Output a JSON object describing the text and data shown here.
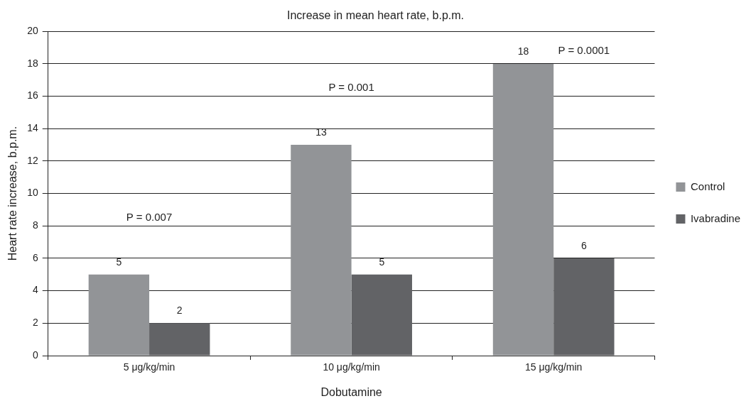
{
  "chart_data": {
    "type": "bar",
    "title": "Increase in mean heart rate, b.p.m.",
    "xlabel": "Dobutamine",
    "ylabel": "Heart rate increase, b.p.m.",
    "categories": [
      "5 μg/kg/min",
      "10 μg/kg/min",
      "15 μg/kg/min"
    ],
    "series": [
      {
        "name": "Control",
        "color": "#929497",
        "values": [
          5,
          13,
          18
        ]
      },
      {
        "name": "Ivabradine",
        "color": "#626366",
        "values": [
          2,
          5,
          6
        ]
      }
    ],
    "ylim": [
      0,
      20
    ],
    "yticks": [
      0,
      2,
      4,
      6,
      8,
      10,
      12,
      14,
      16,
      18,
      20
    ],
    "grid": "y",
    "legend": "right",
    "data_labels": true,
    "annotations": [
      "P = 0.007",
      "P = 0.001",
      "P = 0.0001"
    ]
  }
}
